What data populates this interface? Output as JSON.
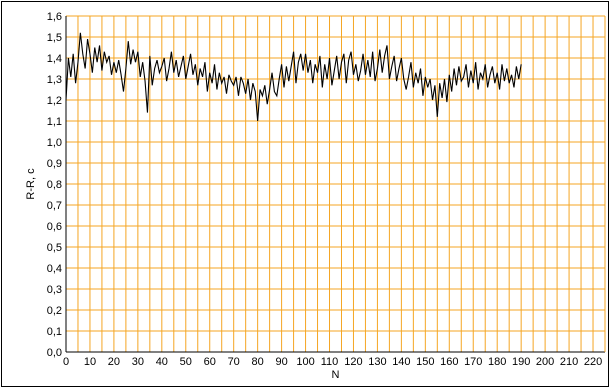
{
  "chart_data": {
    "type": "line",
    "xlabel": "N",
    "ylabel": "R-R, c",
    "xlim": [
      0,
      225
    ],
    "ylim": [
      0,
      1.6
    ],
    "x_ticks": [
      0,
      10,
      20,
      30,
      40,
      50,
      60,
      70,
      80,
      90,
      100,
      110,
      120,
      130,
      140,
      150,
      160,
      170,
      180,
      190,
      200,
      210,
      220
    ],
    "y_ticks": [
      "0,0",
      "0,1",
      "0,2",
      "0,3",
      "0,4",
      "0,5",
      "0,6",
      "0,7",
      "0,8",
      "0,9",
      "1,0",
      "1,1",
      "1,2",
      "1,3",
      "1,4",
      "1,5",
      "1,6"
    ],
    "grid": "on",
    "legend": "none",
    "colors": {
      "grid": "#f5a623",
      "line": "#000000",
      "axis": "#000000"
    },
    "series": [
      {
        "x_start": 0,
        "x_step": 1,
        "values": [
          1.2,
          1.4,
          1.31,
          1.42,
          1.28,
          1.38,
          1.52,
          1.42,
          1.35,
          1.49,
          1.42,
          1.33,
          1.45,
          1.38,
          1.46,
          1.34,
          1.43,
          1.38,
          1.41,
          1.32,
          1.38,
          1.33,
          1.39,
          1.32,
          1.24,
          1.35,
          1.48,
          1.37,
          1.44,
          1.38,
          1.43,
          1.31,
          1.38,
          1.29,
          1.14,
          1.41,
          1.27,
          1.35,
          1.39,
          1.33,
          1.36,
          1.4,
          1.29,
          1.35,
          1.43,
          1.33,
          1.39,
          1.31,
          1.36,
          1.41,
          1.3,
          1.36,
          1.42,
          1.32,
          1.37,
          1.27,
          1.35,
          1.31,
          1.38,
          1.24,
          1.33,
          1.28,
          1.37,
          1.25,
          1.33,
          1.28,
          1.31,
          1.23,
          1.32,
          1.29,
          1.27,
          1.31,
          1.22,
          1.31,
          1.28,
          1.23,
          1.3,
          1.2,
          1.28,
          1.24,
          1.1,
          1.25,
          1.22,
          1.27,
          1.18,
          1.25,
          1.33,
          1.24,
          1.22,
          1.3,
          1.37,
          1.26,
          1.36,
          1.29,
          1.36,
          1.43,
          1.28,
          1.38,
          1.42,
          1.34,
          1.42,
          1.33,
          1.39,
          1.28,
          1.37,
          1.33,
          1.41,
          1.26,
          1.37,
          1.3,
          1.4,
          1.27,
          1.34,
          1.41,
          1.3,
          1.38,
          1.42,
          1.28,
          1.39,
          1.43,
          1.32,
          1.37,
          1.29,
          1.34,
          1.42,
          1.32,
          1.39,
          1.31,
          1.43,
          1.29,
          1.35,
          1.44,
          1.33,
          1.41,
          1.46,
          1.3,
          1.36,
          1.41,
          1.29,
          1.35,
          1.4,
          1.3,
          1.25,
          1.31,
          1.38,
          1.26,
          1.33,
          1.28,
          1.35,
          1.22,
          1.31,
          1.26,
          1.3,
          1.2,
          1.27,
          1.12,
          1.28,
          1.21,
          1.3,
          1.19,
          1.32,
          1.24,
          1.35,
          1.27,
          1.36,
          1.29,
          1.31,
          1.37,
          1.26,
          1.34,
          1.28,
          1.38,
          1.25,
          1.33,
          1.3,
          1.37,
          1.26,
          1.32,
          1.36,
          1.28,
          1.33,
          1.25,
          1.37,
          1.29,
          1.35,
          1.28,
          1.32,
          1.26,
          1.36,
          1.3,
          1.37
        ]
      }
    ]
  }
}
